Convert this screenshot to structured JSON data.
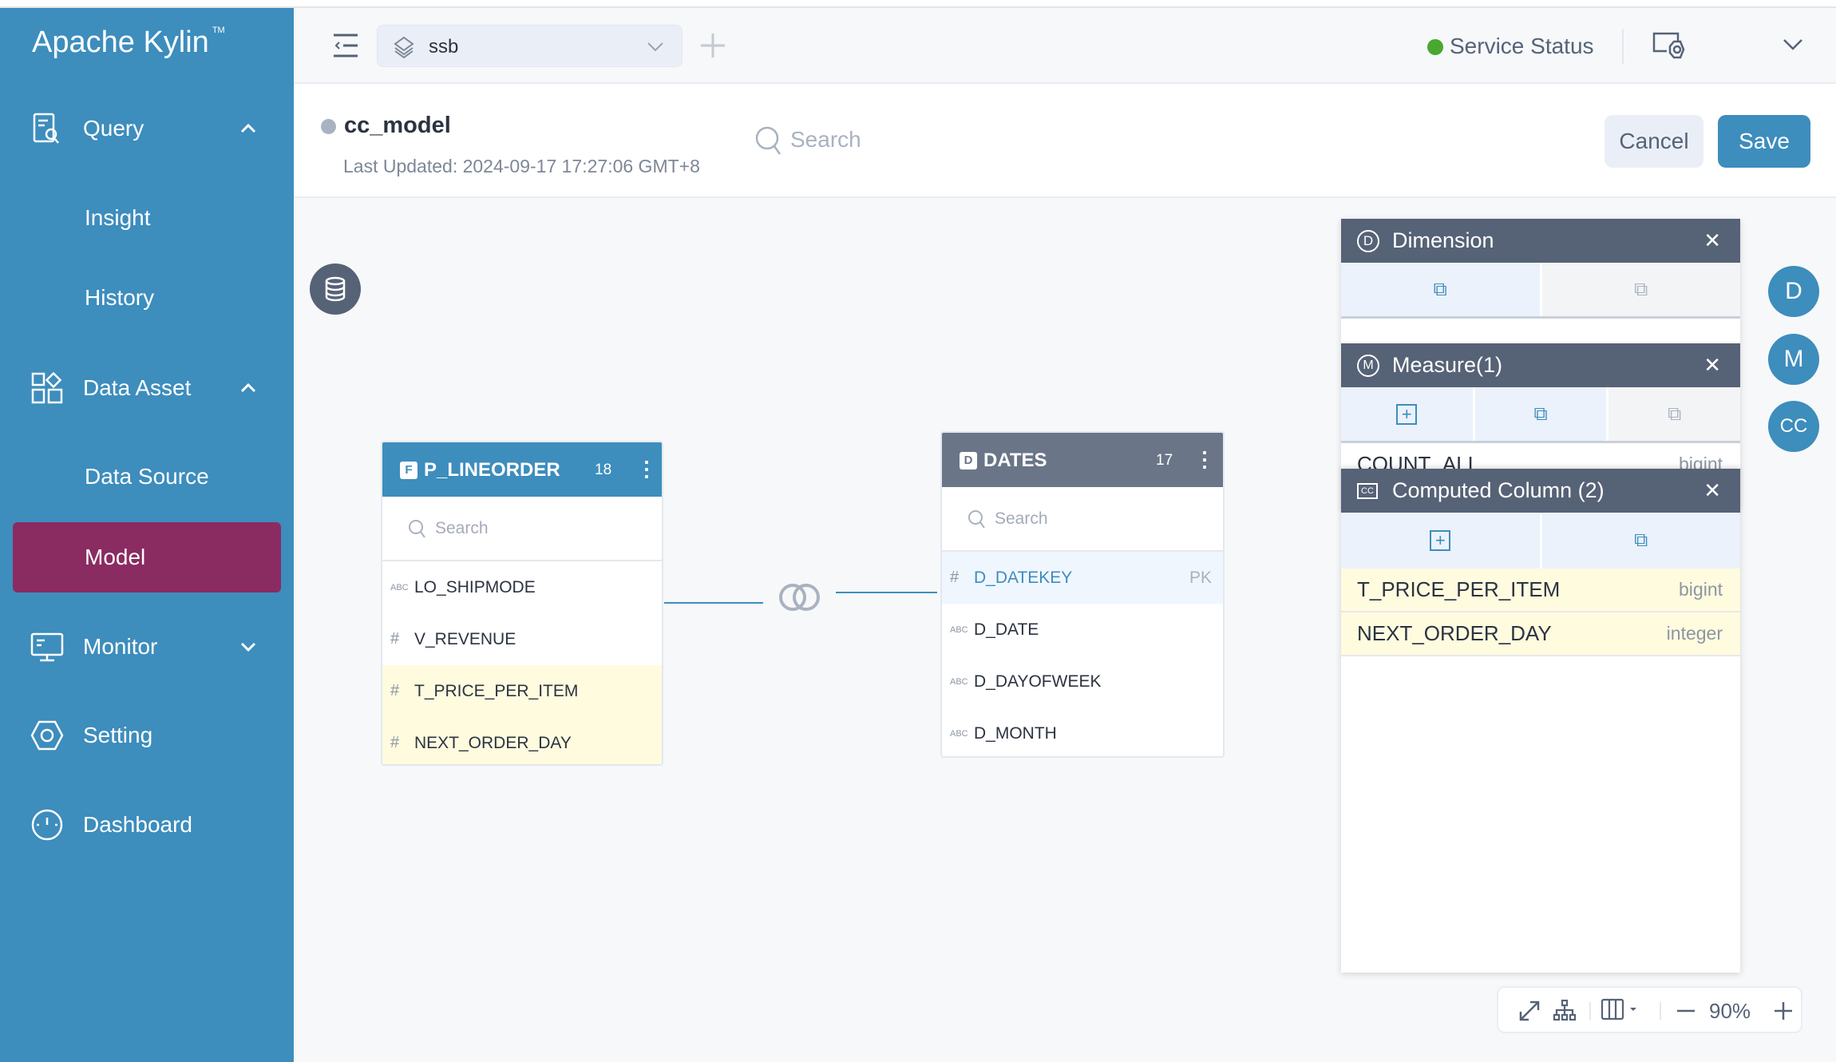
{
  "app": {
    "name": "Apache Kylin",
    "tm": "TM"
  },
  "sidebar": {
    "items": [
      {
        "label": "Query",
        "icon": "query-icon",
        "expanded": true
      },
      {
        "label": "Insight"
      },
      {
        "label": "History"
      },
      {
        "label": "Data Asset",
        "icon": "data-asset-icon",
        "expanded": true
      },
      {
        "label": "Data Source"
      },
      {
        "label": "Model",
        "active": true
      },
      {
        "label": "Monitor",
        "icon": "monitor-icon",
        "expanded": false
      },
      {
        "label": "Setting",
        "icon": "setting-icon"
      },
      {
        "label": "Dashboard",
        "icon": "dashboard-icon"
      }
    ]
  },
  "header": {
    "project": "ssb",
    "service_status": "Service Status",
    "status_color": "#4aa830"
  },
  "model": {
    "name": "cc_model",
    "last_updated": "Last Updated: 2024-09-17 17:27:06 GMT+8",
    "search_placeholder": "Search",
    "cancel": "Cancel",
    "save": "Save"
  },
  "tables": [
    {
      "name": "P_LINEORDER",
      "badge": "F",
      "count": "18",
      "search": "Search",
      "columns": [
        {
          "type": "ABC",
          "name": "LO_SHIPMODE"
        },
        {
          "type": "#",
          "name": "V_REVENUE"
        },
        {
          "type": "#",
          "name": "T_PRICE_PER_ITEM",
          "computed": true
        },
        {
          "type": "#",
          "name": "NEXT_ORDER_DAY",
          "computed": true
        }
      ]
    },
    {
      "name": "DATES",
      "badge": "D",
      "count": "17",
      "search": "Search",
      "columns": [
        {
          "type": "#",
          "name": "D_DATEKEY",
          "tag": "PK"
        },
        {
          "type": "ABC",
          "name": "D_DATE"
        },
        {
          "type": "ABC",
          "name": "D_DAYOFWEEK"
        },
        {
          "type": "ABC",
          "name": "D_MONTH"
        }
      ]
    }
  ],
  "panel": {
    "dimension": {
      "title": "Dimension",
      "icon": "D"
    },
    "measure": {
      "title": "Measure(1)",
      "icon": "M",
      "items": [
        {
          "name": "COUNT_ALL",
          "type": "bigint"
        }
      ]
    },
    "computed": {
      "title": "Computed Column (2)",
      "icon": "CC",
      "items": [
        {
          "name": "T_PRICE_PER_ITEM",
          "type": "bigint"
        },
        {
          "name": "NEXT_ORDER_DAY",
          "type": "integer"
        }
      ]
    }
  },
  "side_buttons": [
    "D",
    "M",
    "CC"
  ],
  "zoom": {
    "level": "90%"
  },
  "colors": {
    "sidebar": "#3d8dbd",
    "active": "#8a2b61",
    "fact_header": "#3d8dbd",
    "dim_header": "#6a7587"
  }
}
